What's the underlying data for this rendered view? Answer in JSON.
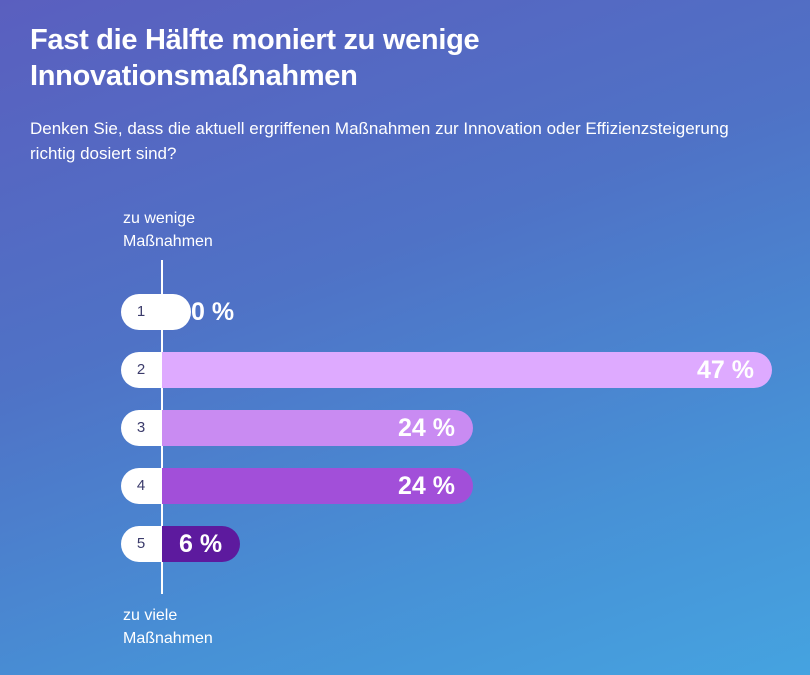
{
  "title": "Fast die Hälfte moniert zu wenige Innovationsmaßnahmen",
  "subtitle": "Denken Sie, dass die aktuell ergriffenen Maßnahmen zur Innovation oder Effizienzsteigerung richtig dosiert sind?",
  "chart_data": {
    "type": "bar",
    "orientation": "horizontal",
    "axis_top_label": "zu wenige Maßnahmen",
    "axis_bottom_label": "zu viele Maßnahmen",
    "categories": [
      "1",
      "2",
      "3",
      "4",
      "5"
    ],
    "values": [
      0,
      47,
      24,
      24,
      6
    ],
    "value_labels": [
      "0 %",
      "47 %",
      "24 %",
      "24 %",
      "6 %"
    ],
    "colors": [
      "#e8c4ff",
      "#deaaff",
      "#c98bf2",
      "#a24fd9",
      "#5d1a9e"
    ],
    "xlim": [
      0,
      47
    ],
    "grid": false,
    "legend": false
  }
}
